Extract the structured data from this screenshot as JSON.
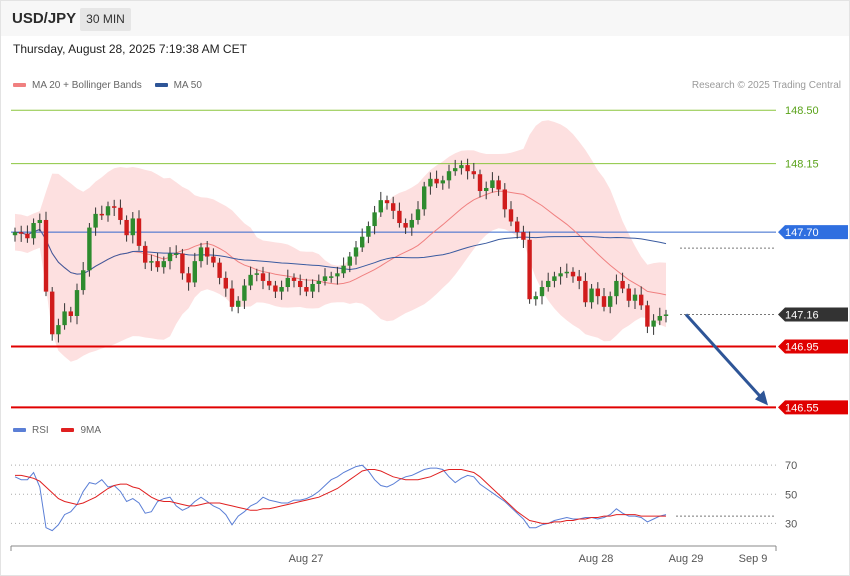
{
  "header": {
    "symbol": "USD/JPY",
    "timeframe": "30 MIN",
    "datetime": "Thursday, August 28, 2025 7:19:38 AM CET",
    "copyright": "Research © 2025 Trading Central"
  },
  "legend": {
    "price": [
      {
        "label": "MA 20 + Bollinger Bands",
        "color": "#f08080"
      },
      {
        "label": "MA 50",
        "color": "#2e5597"
      }
    ],
    "rsi": [
      {
        "label": "RSI",
        "color": "#5b7fd6"
      },
      {
        "label": "9MA",
        "color": "#e02020"
      }
    ]
  },
  "colors": {
    "bull": "#2e8b2e",
    "bear": "#d01c1c",
    "band_fill": "#fde0e0",
    "ma20": "#f08080",
    "ma50": "#3a5ba0",
    "resistance": "#8cc63f",
    "pivot": "#3366cc",
    "support": "#e00000",
    "arrow": "#2e5597",
    "last_price": "#333333"
  },
  "chart_data": [
    {
      "type": "candlestick",
      "panel": "price",
      "ylim": [
        146.52,
        148.6
      ],
      "x_ticks": [
        "Aug 27",
        "Aug 28",
        "Aug 29",
        "Sep 9"
      ],
      "levels": [
        {
          "label": "148.50",
          "value": 148.5,
          "role": "resistance"
        },
        {
          "label": "148.15",
          "value": 148.15,
          "role": "resistance"
        },
        {
          "label": "147.70",
          "value": 147.7,
          "role": "pivot"
        },
        {
          "label": "147.16",
          "value": 147.16,
          "role": "last"
        },
        {
          "label": "146.95",
          "value": 146.95,
          "role": "support"
        },
        {
          "label": "146.55",
          "value": 146.55,
          "role": "support"
        }
      ],
      "forecast": {
        "from": 147.16,
        "to": 146.55
      },
      "close": [
        147.7,
        147.69,
        147.66,
        147.76,
        147.78,
        147.31,
        147.03,
        147.09,
        147.18,
        147.15,
        147.32,
        147.45,
        147.73,
        147.82,
        147.81,
        147.87,
        147.86,
        147.78,
        147.68,
        147.79,
        147.61,
        147.5,
        147.51,
        147.47,
        147.51,
        147.56,
        147.56,
        147.43,
        147.37,
        147.51,
        147.6,
        147.54,
        147.5,
        147.4,
        147.33,
        147.21,
        147.25,
        147.35,
        147.42,
        147.43,
        147.38,
        147.35,
        147.31,
        147.34,
        147.4,
        147.38,
        147.34,
        147.31,
        147.36,
        147.38,
        147.41,
        147.41,
        147.43,
        147.48,
        147.54,
        147.6,
        147.67,
        147.74,
        147.83,
        147.91,
        147.89,
        147.84,
        147.76,
        147.73,
        147.78,
        147.85,
        148.0,
        148.05,
        148.02,
        148.04,
        148.1,
        148.12,
        148.14,
        148.1,
        148.08,
        147.97,
        147.99,
        148.04,
        147.98,
        147.85,
        147.77,
        147.7,
        147.65,
        147.26,
        147.28,
        147.34,
        147.38,
        147.41,
        147.43,
        147.44,
        147.41,
        147.38,
        147.24,
        147.33,
        147.28,
        147.21,
        147.28,
        147.38,
        147.33,
        147.25,
        147.29,
        147.22,
        147.08,
        147.12,
        147.15,
        147.16
      ]
    },
    {
      "type": "line",
      "panel": "rsi",
      "ylim": [
        22,
        77
      ],
      "y_ticks": [
        70,
        50,
        30
      ],
      "series": [
        {
          "name": "RSI",
          "values": [
            62,
            60,
            60,
            65,
            55,
            27,
            25,
            29,
            36,
            38,
            43,
            52,
            58,
            57,
            60,
            55,
            56,
            52,
            45,
            47,
            44,
            37,
            38,
            45,
            47,
            48,
            42,
            39,
            41,
            45,
            48,
            45,
            42,
            40,
            36,
            29,
            35,
            38,
            42,
            44,
            48,
            46,
            45,
            44,
            44,
            46,
            46,
            47,
            49,
            52,
            56,
            60,
            62,
            65,
            67,
            69,
            70,
            66,
            60,
            56,
            55,
            57,
            60,
            62,
            63,
            65,
            67,
            68,
            68,
            67,
            62,
            58,
            61,
            63,
            62,
            57,
            54,
            51,
            48,
            45,
            41,
            37,
            33,
            27,
            27,
            29,
            30,
            32,
            33,
            34,
            33,
            33,
            34,
            34,
            33,
            34,
            36,
            40,
            37,
            35,
            35,
            34,
            31,
            33,
            35,
            36
          ]
        },
        {
          "name": "9MA",
          "values": [
            63,
            63,
            62,
            61,
            59,
            55,
            51,
            47,
            45,
            44,
            43,
            44,
            46,
            48,
            51,
            54,
            56,
            57,
            57,
            55,
            54,
            51,
            48,
            46,
            45,
            45,
            44,
            43,
            42,
            42,
            43,
            44,
            44,
            44,
            43,
            42,
            41,
            40,
            39,
            39,
            40,
            40,
            41,
            42,
            43,
            44,
            45,
            46,
            47,
            48,
            50,
            52,
            54,
            57,
            60,
            63,
            66,
            67,
            67,
            66,
            64,
            62,
            61,
            60,
            60,
            60,
            61,
            62,
            64,
            66,
            67,
            67,
            67,
            66,
            65,
            62,
            58,
            54,
            50,
            46,
            42,
            38,
            35,
            32,
            31,
            30,
            30,
            31,
            31,
            32,
            32,
            33,
            33,
            34,
            34,
            35,
            35,
            36,
            36,
            36,
            36,
            35,
            35,
            35,
            35,
            35
          ]
        }
      ]
    }
  ]
}
